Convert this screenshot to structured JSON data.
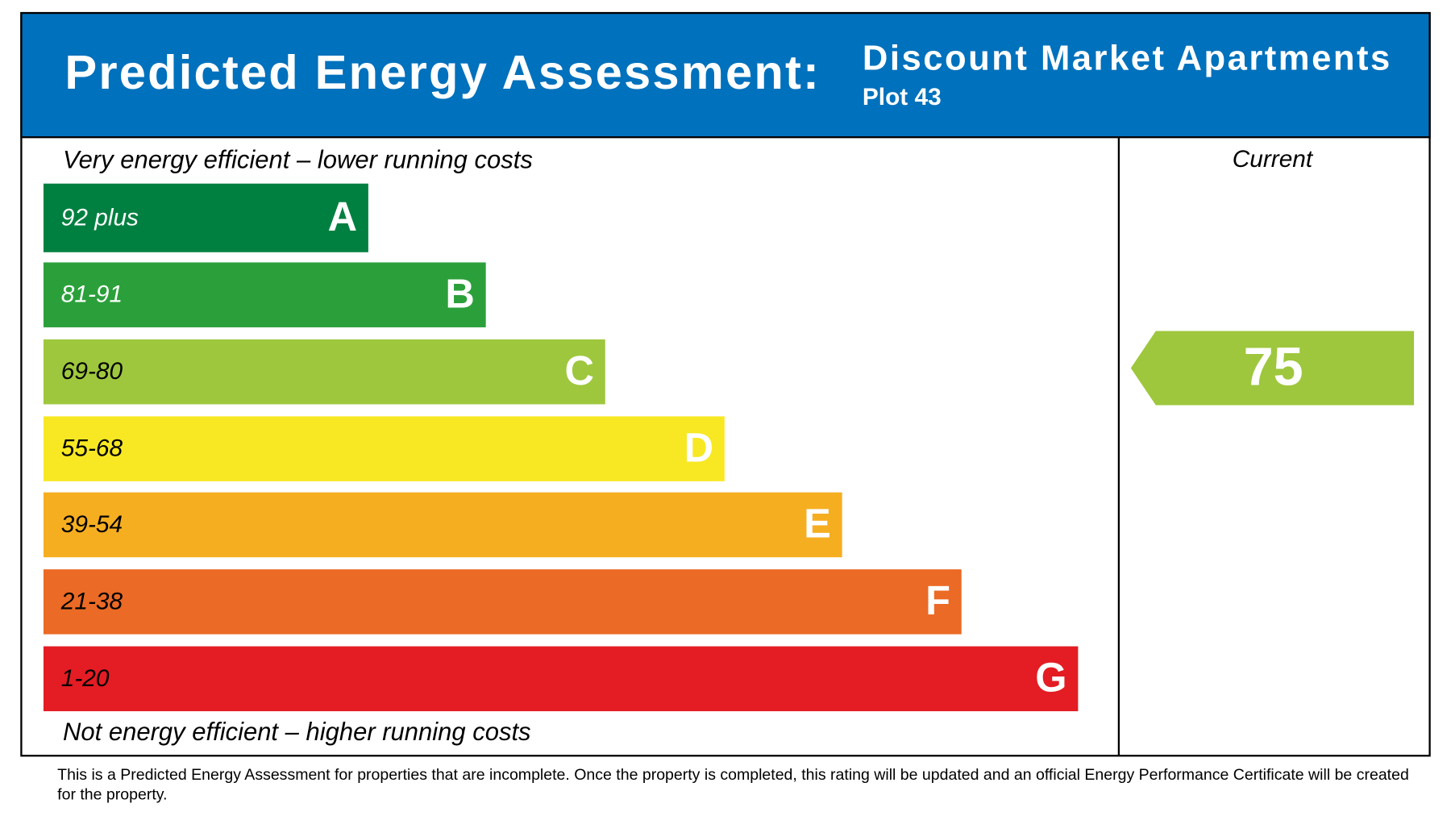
{
  "header": {
    "title": "Predicted Energy Assessment:",
    "development": "Discount Market Apartments",
    "plot": "Plot 43"
  },
  "scale": {
    "top_note": "Very energy efficient – lower running costs",
    "bottom_note": "Not energy efficient – higher running costs",
    "bands": [
      {
        "range": "92 plus",
        "letter": "A",
        "color": "#008040"
      },
      {
        "range": "81-91",
        "letter": "B",
        "color": "#2ba03a"
      },
      {
        "range": "69-80",
        "letter": "C",
        "color": "#9ec73d"
      },
      {
        "range": "55-68",
        "letter": "D",
        "color": "#f7e823"
      },
      {
        "range": "39-54",
        "letter": "E",
        "color": "#f6ae21"
      },
      {
        "range": "21-38",
        "letter": "F",
        "color": "#eb6a25"
      },
      {
        "range": "1-20",
        "letter": "G",
        "color": "#e31d23"
      }
    ]
  },
  "current": {
    "label": "Current",
    "value": 75
  },
  "footer": "This is a Predicted Energy Assessment for properties that are incomplete. Once the property is completed, this rating will be updated and an official Energy Performance Certificate will be created for the property."
}
